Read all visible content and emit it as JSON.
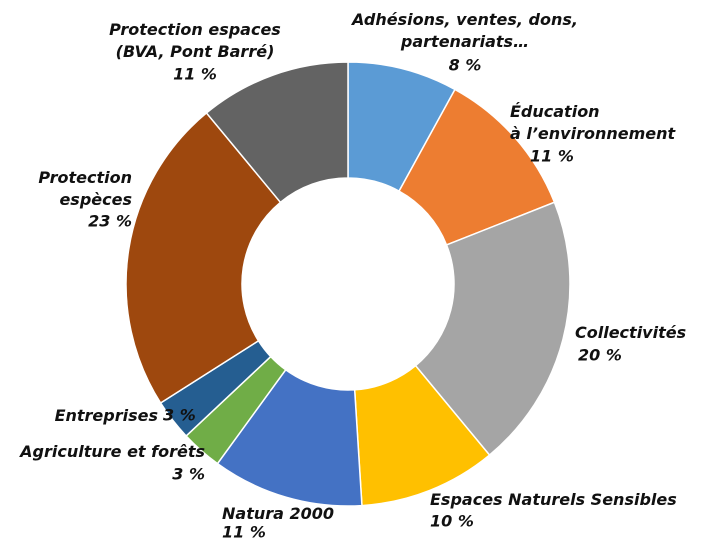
{
  "chart_data": {
    "type": "donut",
    "categories": [
      "Adhésions, ventes, dons,\npartenariats…",
      "Éducation\nà l’environnement",
      "Collectivités",
      "Espaces Naturels Sensibles",
      "Natura 2000",
      "Agriculture et forêts",
      "Entreprises",
      "Protection\nespèces",
      "Protection espaces\n(BVA, Pont Barré)"
    ],
    "values": [
      8,
      11,
      20,
      10,
      11,
      3,
      3,
      23,
      11
    ],
    "value_labels": [
      "8 %",
      "11 %",
      "20 %",
      "10 %",
      "11 %",
      "3 %",
      "3 %",
      "23 %",
      "11 %"
    ],
    "colors": [
      "#5b9bd5",
      "#ed7d31",
      "#a5a5a5",
      "#ffc000",
      "#4472c4",
      "#70ad47",
      "#255e91",
      "#9e480e",
      "#636363"
    ]
  }
}
